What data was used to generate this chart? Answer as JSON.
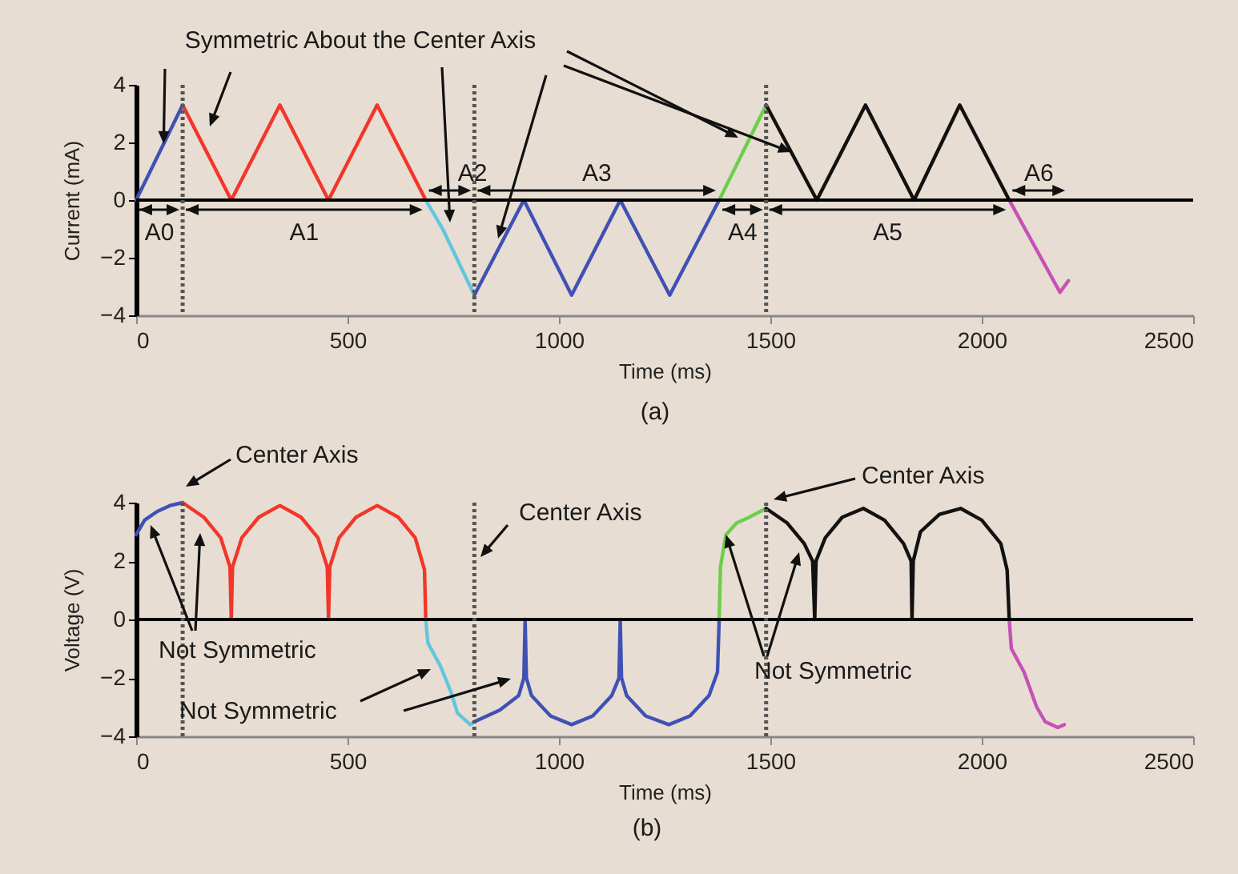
{
  "chart_data": [
    {
      "type": "line",
      "xlabel": "Time (ms)",
      "ylabel": "Current (mA)",
      "xlim": [
        0,
        2500
      ],
      "xticks": [
        0,
        500,
        1000,
        1500,
        2000,
        2500
      ],
      "ylim": [
        -4,
        4
      ],
      "yticks": [
        -4,
        -2,
        0,
        2,
        4
      ],
      "series": [
        {
          "color": "#3f51b5",
          "x": [
            0,
            110
          ],
          "values": [
            0,
            3.3
          ]
        },
        {
          "color": "#f2362a",
          "x": [
            110,
            225,
            340,
            455,
            570,
            685
          ],
          "values": [
            3.3,
            0,
            3.3,
            0,
            3.3,
            0
          ]
        },
        {
          "color": "#62c6de",
          "x": [
            685,
            725,
            800
          ],
          "values": [
            0,
            -1,
            -3.3
          ]
        },
        {
          "color": "#3f51b5",
          "x": [
            800,
            917,
            1030,
            1145,
            1262,
            1379
          ],
          "values": [
            -3.3,
            0,
            -3.3,
            0,
            -3.3,
            0
          ]
        },
        {
          "color": "#6ccf4a",
          "x": [
            1379,
            1490
          ],
          "values": [
            0,
            3.3
          ]
        },
        {
          "color": "#111111",
          "x": [
            1490,
            1610,
            1725,
            1840,
            1948,
            2065
          ],
          "values": [
            3.3,
            0,
            3.3,
            0,
            3.3,
            0
          ]
        },
        {
          "color": "#c651b8",
          "x": [
            2065,
            2185,
            2205
          ],
          "values": [
            0,
            -3.2,
            -2.8
          ]
        }
      ],
      "ref_lines": [
        {
          "axis": "y",
          "value": 0,
          "color": "#000000",
          "line_style": "solid"
        },
        {
          "axis": "x",
          "value": 110,
          "color": "#555555",
          "line_style": "dotted"
        },
        {
          "axis": "x",
          "value": 800,
          "color": "#555555",
          "line_style": "dotted"
        },
        {
          "axis": "x",
          "value": 1490,
          "color": "#555555",
          "line_style": "dotted"
        }
      ],
      "annotations": [
        {
          "text": "Symmetric About the Center Axis",
          "x": 65,
          "y": 1.95
        },
        "A0",
        "A1",
        "A2",
        "A3",
        "A4",
        "A5",
        "A6",
        "(a)"
      ]
    },
    {
      "type": "line",
      "xlabel": "Time (ms)",
      "ylabel": "Voltage (V)",
      "xlim": [
        0,
        2500
      ],
      "xticks": [
        0,
        500,
        1000,
        1500,
        2000,
        2500
      ],
      "ylim": [
        -4,
        4
      ],
      "yticks": [
        -4,
        -2,
        0,
        2,
        4
      ],
      "series": [
        {
          "color": "#3f51b5",
          "x": [
            0,
            20,
            50,
            80,
            110
          ],
          "values": [
            2.9,
            3.4,
            3.7,
            3.9,
            4
          ]
        },
        {
          "color": "#f2362a",
          "x": [
            110,
            160,
            200,
            222,
            225,
            228,
            250,
            290,
            340,
            390,
            430,
            452,
            455,
            458,
            480,
            520,
            570,
            620,
            660,
            682,
            685
          ],
          "values": [
            4,
            3.5,
            2.8,
            1.8,
            0,
            1.8,
            2.8,
            3.5,
            3.9,
            3.5,
            2.8,
            1.8,
            0,
            1.8,
            2.8,
            3.5,
            3.9,
            3.5,
            2.8,
            1.7,
            0
          ]
        },
        {
          "color": "#62c6de",
          "x": [
            685,
            690,
            720,
            745,
            760,
            790,
            800
          ],
          "values": [
            0,
            -0.8,
            -1.6,
            -2.5,
            -3.2,
            -3.6,
            -3.5
          ]
        },
        {
          "color": "#3f51b5",
          "x": [
            800,
            860,
            905,
            917,
            920,
            923,
            935,
            980,
            1030,
            1080,
            1125,
            1142,
            1145,
            1148,
            1160,
            1205,
            1260,
            1310,
            1355,
            1375,
            1379
          ],
          "values": [
            -3.5,
            -3.1,
            -2.6,
            -2,
            0,
            -2,
            -2.6,
            -3.3,
            -3.6,
            -3.3,
            -2.6,
            -2,
            0,
            -2,
            -2.6,
            -3.3,
            -3.6,
            -3.3,
            -2.6,
            -1.8,
            0
          ]
        },
        {
          "color": "#6ccf4a",
          "x": [
            1379,
            1382,
            1395,
            1420,
            1450,
            1490
          ],
          "values": [
            0,
            1.8,
            2.9,
            3.3,
            3.5,
            3.8
          ]
        },
        {
          "color": "#111111",
          "x": [
            1490,
            1540,
            1580,
            1600,
            1605,
            1608,
            1630,
            1670,
            1720,
            1770,
            1815,
            1833,
            1835,
            1838,
            1855,
            1900,
            1950,
            2000,
            2045,
            2060,
            2065
          ],
          "values": [
            3.8,
            3.3,
            2.6,
            2,
            0,
            2,
            2.8,
            3.5,
            3.8,
            3.4,
            2.6,
            2,
            0,
            2,
            3,
            3.6,
            3.8,
            3.4,
            2.6,
            1.7,
            0
          ]
        },
        {
          "color": "#c651b8",
          "x": [
            2065,
            2070,
            2100,
            2130,
            2150,
            2180,
            2195
          ],
          "values": [
            0,
            -1,
            -1.8,
            -3,
            -3.5,
            -3.7,
            -3.6
          ]
        }
      ],
      "ref_lines": [
        {
          "axis": "y",
          "value": 0,
          "color": "#000000",
          "line_style": "solid"
        },
        {
          "axis": "x",
          "value": 110,
          "color": "#555555",
          "line_style": "dotted"
        },
        {
          "axis": "x",
          "value": 800,
          "color": "#555555",
          "line_style": "dotted"
        },
        {
          "axis": "x",
          "value": 1490,
          "color": "#555555",
          "line_style": "dotted"
        }
      ],
      "annotations": [
        "Center Axis",
        "Center Axis",
        "Center Axis",
        "Not Symmetric",
        "Not Symmetric",
        {
          "text": "Not Symmetric",
          "x": 1395,
          "y": 2.9
        },
        "(b)"
      ]
    }
  ]
}
